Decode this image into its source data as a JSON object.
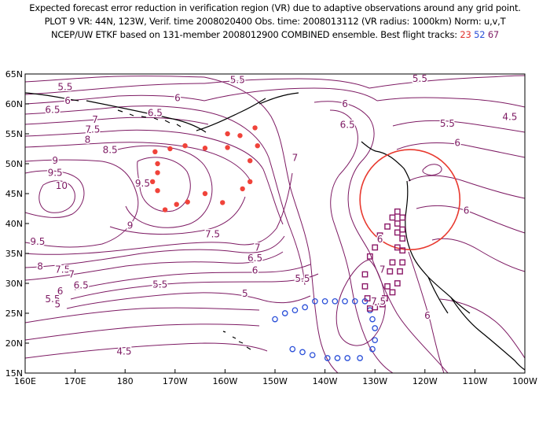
{
  "title": {
    "line1": "Expected forecast error reduction in verification region (VR) due to adaptive observations around any grid point.",
    "line2": "PLOT 9 VR: 44N, 123W, Verif. time 2008020400 Obs. time: 2008013112 (VR radius: 1000km) Norm: u,v,T",
    "line3_prefix": "NCEP/UW ETKF based on 131-member 2008012900 COMBINED ensemble.  Best flight tracks:",
    "tracks": [
      "23",
      "52",
      "67"
    ]
  },
  "colors": {
    "contour": "#7d1a63",
    "track_23": "#f0433a",
    "track_52": "#2a4fd8",
    "track_67": "#8b1a68",
    "vr_circle": "#e8392f",
    "coast": "#000000"
  },
  "axes": {
    "x_ticks": [
      "160E",
      "170E",
      "180",
      "170W",
      "160W",
      "150W",
      "140W",
      "130W",
      "120W",
      "110W",
      "100W"
    ],
    "y_ticks": [
      "65N",
      "60N",
      "55N",
      "50N",
      "45N",
      "40N",
      "35N",
      "30N",
      "25N",
      "20N",
      "15N"
    ]
  },
  "contour_labels": [
    {
      "text": "5.5",
      "lon": 168,
      "lat": 62.8
    },
    {
      "text": "5.5",
      "lon": 202.5,
      "lat": 64.0
    },
    {
      "text": "5.5",
      "lon": 239.0,
      "lat": 64.2
    },
    {
      "text": "6",
      "lon": 190.5,
      "lat": 61.0
    },
    {
      "text": "6",
      "lon": 168.5,
      "lat": 60.5
    },
    {
      "text": "6.5",
      "lon": 165.5,
      "lat": 59.0
    },
    {
      "text": "6.5",
      "lon": 186.0,
      "lat": 58.5
    },
    {
      "text": "6",
      "lon": 224.0,
      "lat": 60.0
    },
    {
      "text": "7",
      "lon": 174.0,
      "lat": 57.4
    },
    {
      "text": "7.5",
      "lon": 173.5,
      "lat": 55.7
    },
    {
      "text": "8",
      "lon": 172.5,
      "lat": 54.0
    },
    {
      "text": "8.5",
      "lon": 177.0,
      "lat": 52.3
    },
    {
      "text": "9",
      "lon": 166.0,
      "lat": 50.5
    },
    {
      "text": "9.5",
      "lon": 166.0,
      "lat": 48.5
    },
    {
      "text": "9.5",
      "lon": 183.5,
      "lat": 46.7
    },
    {
      "text": "10",
      "lon": 167.3,
      "lat": 46.3
    },
    {
      "text": "9",
      "lon": 181.0,
      "lat": 39.7
    },
    {
      "text": "9.5",
      "lon": 162.5,
      "lat": 37.0
    },
    {
      "text": "8",
      "lon": 163.0,
      "lat": 32.8
    },
    {
      "text": "7.5",
      "lon": 167.5,
      "lat": 32.3
    },
    {
      "text": "7",
      "lon": 169.3,
      "lat": 31.5
    },
    {
      "text": "6.5",
      "lon": 171.2,
      "lat": 29.7
    },
    {
      "text": "6",
      "lon": 167.0,
      "lat": 28.7
    },
    {
      "text": "5.5",
      "lon": 165.5,
      "lat": 27.4
    },
    {
      "text": "5",
      "lon": 166.5,
      "lat": 26.5
    },
    {
      "text": "4.5",
      "lon": 179.8,
      "lat": 18.6
    },
    {
      "text": "5.5",
      "lon": 187.0,
      "lat": 29.8
    },
    {
      "text": "5",
      "lon": 204.0,
      "lat": 28.3
    },
    {
      "text": "5.5",
      "lon": 215.5,
      "lat": 30.8
    },
    {
      "text": "6",
      "lon": 206.0,
      "lat": 32.2
    },
    {
      "text": "6.5",
      "lon": 206.0,
      "lat": 34.2
    },
    {
      "text": "7",
      "lon": 206.5,
      "lat": 36.0
    },
    {
      "text": "7.5",
      "lon": 197.5,
      "lat": 38.2
    },
    {
      "text": "7",
      "lon": 214.0,
      "lat": 51.0
    },
    {
      "text": "6.5",
      "lon": 224.5,
      "lat": 56.5
    },
    {
      "text": "6",
      "lon": 231.0,
      "lat": 37.4
    },
    {
      "text": "7",
      "lon": 231.5,
      "lat": 32.3
    },
    {
      "text": "7.5",
      "lon": 230.7,
      "lat": 27.0
    },
    {
      "text": "5.5",
      "lon": 244.5,
      "lat": 56.7
    },
    {
      "text": "6",
      "lon": 246.5,
      "lat": 53.5
    },
    {
      "text": "6",
      "lon": 248.3,
      "lat": 42.2
    },
    {
      "text": "6",
      "lon": 240.5,
      "lat": 24.6
    },
    {
      "text": "4.5",
      "lon": 257.0,
      "lat": 57.8
    }
  ],
  "tracks": [
    {
      "id": "23",
      "color": "#f0433a",
      "marker": "dot",
      "points": [
        [
          186.0,
          52.0
        ],
        [
          189.0,
          52.5
        ],
        [
          192.0,
          53.0
        ],
        [
          196.0,
          52.6
        ],
        [
          200.5,
          55.0
        ],
        [
          203.0,
          54.7
        ],
        [
          206.0,
          56.0
        ],
        [
          200.5,
          52.7
        ],
        [
          206.5,
          53.0
        ],
        [
          205.0,
          50.5
        ],
        [
          205.0,
          47.0
        ],
        [
          203.5,
          45.8
        ],
        [
          199.5,
          43.5
        ],
        [
          196.0,
          45.0
        ],
        [
          192.5,
          43.6
        ],
        [
          190.3,
          43.2
        ],
        [
          188.0,
          42.3
        ],
        [
          186.5,
          45.5
        ],
        [
          185.5,
          47.0
        ],
        [
          186.5,
          50.0
        ],
        [
          186.5,
          48.5
        ]
      ]
    },
    {
      "id": "52",
      "color": "#2a4fd8",
      "marker": "ring",
      "points": [
        [
          210.0,
          24.0
        ],
        [
          212.0,
          25.0
        ],
        [
          214.0,
          25.5
        ],
        [
          216.0,
          26.0
        ],
        [
          218.0,
          27.0
        ],
        [
          220.0,
          27.0
        ],
        [
          222.0,
          27.0
        ],
        [
          224.0,
          27.0
        ],
        [
          226.0,
          27.0
        ],
        [
          228.0,
          27.0
        ],
        [
          229.0,
          25.5
        ],
        [
          229.5,
          24.0
        ],
        [
          230.0,
          22.5
        ],
        [
          230.0,
          20.5
        ],
        [
          229.5,
          19.0
        ],
        [
          227.0,
          17.5
        ],
        [
          224.5,
          17.5
        ],
        [
          222.5,
          17.5
        ],
        [
          220.5,
          17.5
        ],
        [
          217.5,
          18.0
        ],
        [
          215.5,
          18.5
        ],
        [
          213.5,
          19.0
        ]
      ]
    },
    {
      "id": "67",
      "color": "#8b1a68",
      "marker": "square",
      "points": [
        [
          234.5,
          42.0
        ],
        [
          234.5,
          40.0
        ],
        [
          234.5,
          38.5
        ],
        [
          234.5,
          36.0
        ],
        [
          233.5,
          33.5
        ],
        [
          233.0,
          32.0
        ],
        [
          232.5,
          29.5
        ],
        [
          232.0,
          27.5
        ],
        [
          230.0,
          26.0
        ],
        [
          228.5,
          27.5
        ],
        [
          228.0,
          29.5
        ],
        [
          228.0,
          31.5
        ],
        [
          229.0,
          34.5
        ],
        [
          230.0,
          36.0
        ],
        [
          231.0,
          38.0
        ],
        [
          232.5,
          39.5
        ],
        [
          233.5,
          41.0
        ],
        [
          235.5,
          41.0
        ],
        [
          235.5,
          39.0
        ],
        [
          235.5,
          37.5
        ],
        [
          235.5,
          35.5
        ],
        [
          235.5,
          33.5
        ],
        [
          235.0,
          32.0
        ],
        [
          234.5,
          30.0
        ],
        [
          233.5,
          28.5
        ],
        [
          231.5,
          26.5
        ],
        [
          229.0,
          25.8
        ]
      ]
    }
  ],
  "verification_region": {
    "center_lon": 237.0,
    "center_lat": 44.0,
    "radius_km": 1000
  }
}
